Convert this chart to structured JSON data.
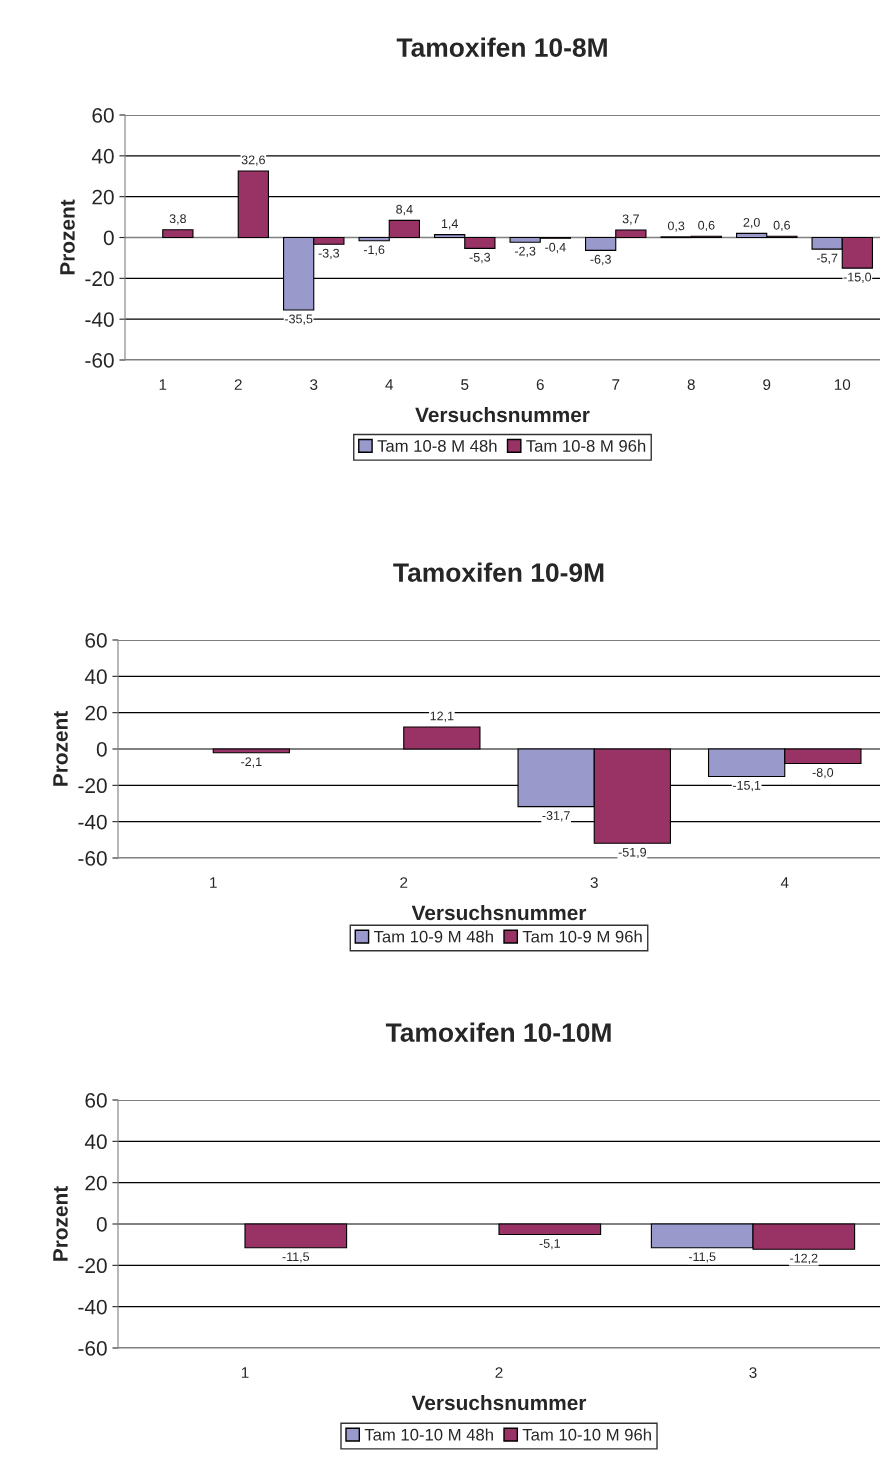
{
  "chart_data": [
    {
      "type": "bar",
      "title": "Tamoxifen 10-8M",
      "xlabel": "Versuchsnummer",
      "ylabel": "Prozent",
      "categories": [
        "1",
        "2",
        "3",
        "4",
        "5",
        "6",
        "7",
        "8",
        "9",
        "10"
      ],
      "ylim": [
        -60,
        60
      ],
      "yticks": [
        -60,
        -40,
        -20,
        0,
        20,
        40,
        60
      ],
      "grid": "y",
      "legend": "bottom",
      "series": [
        {
          "name": "Tam 10-8 M 48h",
          "color": "#9999cc",
          "values": [
            null,
            null,
            -35.5,
            -1.6,
            1.4,
            -2.3,
            -6.3,
            0.3,
            2.0,
            -5.7
          ],
          "value_labels": [
            null,
            null,
            "-35,5",
            "-1,6",
            "1,4",
            "-2,3",
            "-6,3",
            "0,3",
            "2,0",
            "-5,7"
          ]
        },
        {
          "name": "Tam 10-8 M 96h",
          "color": "#993366",
          "values": [
            3.8,
            32.6,
            -3.3,
            8.4,
            -5.3,
            -0.4,
            3.7,
            0.6,
            0.6,
            -15.0
          ],
          "value_labels": [
            "3,8",
            "32,6",
            "-3,3",
            "8,4",
            "-5,3",
            "-0,4",
            "3,7",
            "0,6",
            "0,6",
            "-15,0"
          ]
        }
      ]
    },
    {
      "type": "bar",
      "title": "Tamoxifen 10-9M",
      "xlabel": "Versuchsnummer",
      "ylabel": "Prozent",
      "categories": [
        "1",
        "2",
        "3",
        "4"
      ],
      "ylim": [
        -60,
        60
      ],
      "yticks": [
        -60,
        -40,
        -20,
        0,
        20,
        40,
        60
      ],
      "grid": "y",
      "legend": "bottom",
      "series": [
        {
          "name": "Tam 10-9 M 48h",
          "color": "#9999cc",
          "values": [
            null,
            null,
            -31.7,
            -15.1
          ],
          "value_labels": [
            null,
            null,
            "-31,7",
            "-15,1"
          ]
        },
        {
          "name": "Tam 10-9 M 96h",
          "color": "#993366",
          "values": [
            -2.1,
            12.1,
            -51.9,
            -8.0
          ],
          "value_labels": [
            "-2,1",
            "12,1",
            "-51,9",
            "-8,0"
          ]
        }
      ]
    },
    {
      "type": "bar",
      "title": "Tamoxifen 10-10M",
      "xlabel": "Versuchsnummer",
      "ylabel": "Prozent",
      "categories": [
        "1",
        "2",
        "3"
      ],
      "ylim": [
        -60,
        60
      ],
      "yticks": [
        -60,
        -40,
        -20,
        0,
        20,
        40,
        60
      ],
      "grid": "y",
      "legend": "bottom",
      "series": [
        {
          "name": "Tam 10-10 M 48h",
          "color": "#9999cc",
          "values": [
            null,
            null,
            -11.5
          ],
          "value_labels": [
            null,
            null,
            "-11,5"
          ]
        },
        {
          "name": "Tam 10-10 M 96h",
          "color": "#993366",
          "values": [
            -11.5,
            -5.1,
            -12.2
          ],
          "value_labels": [
            "-11,5",
            "-5,1",
            "-12,2"
          ]
        }
      ]
    }
  ]
}
